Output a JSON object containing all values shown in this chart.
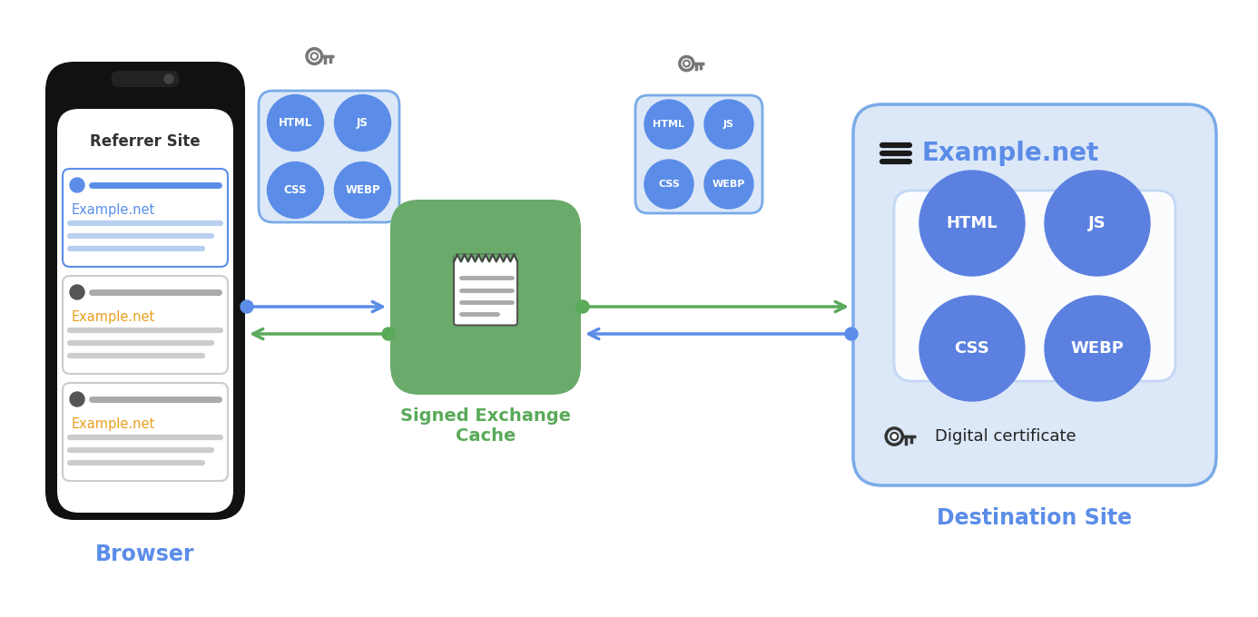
{
  "bg_color": "#ffffff",
  "blue_circle_color": "#5b8de8",
  "green_cache_color": "#6aaa6a",
  "dest_bg_color": "#dce8f8",
  "dest_border_color": "#7aaae8",
  "small_box_bg": "#dce8f8",
  "small_box_border": "#7aaae8",
  "arrow_blue": "#5b8de8",
  "arrow_green": "#5aaa5a",
  "browser_label": "Browser",
  "cache_label_1": "Signed Exchange",
  "cache_label_2": "Cache",
  "dest_label": "Destination Site",
  "referrer_label": "Referrer Site",
  "example_net_label": "Example.net",
  "digital_cert_label": "Digital certificate",
  "circle_labels": [
    "HTML",
    "JS",
    "CSS",
    "WEBP"
  ],
  "label_color_browser": "#5b8de8",
  "label_color_dest": "#5b8de8",
  "label_color_cache": "#5aaa5a",
  "referrer_text_color": "#333333",
  "example_net_color": "#5b8de8",
  "orange_text": "#e8a020",
  "key_color": "#888888",
  "inner_box_bg": "#eef3fc",
  "inner_box_border": "#b0c8f0"
}
